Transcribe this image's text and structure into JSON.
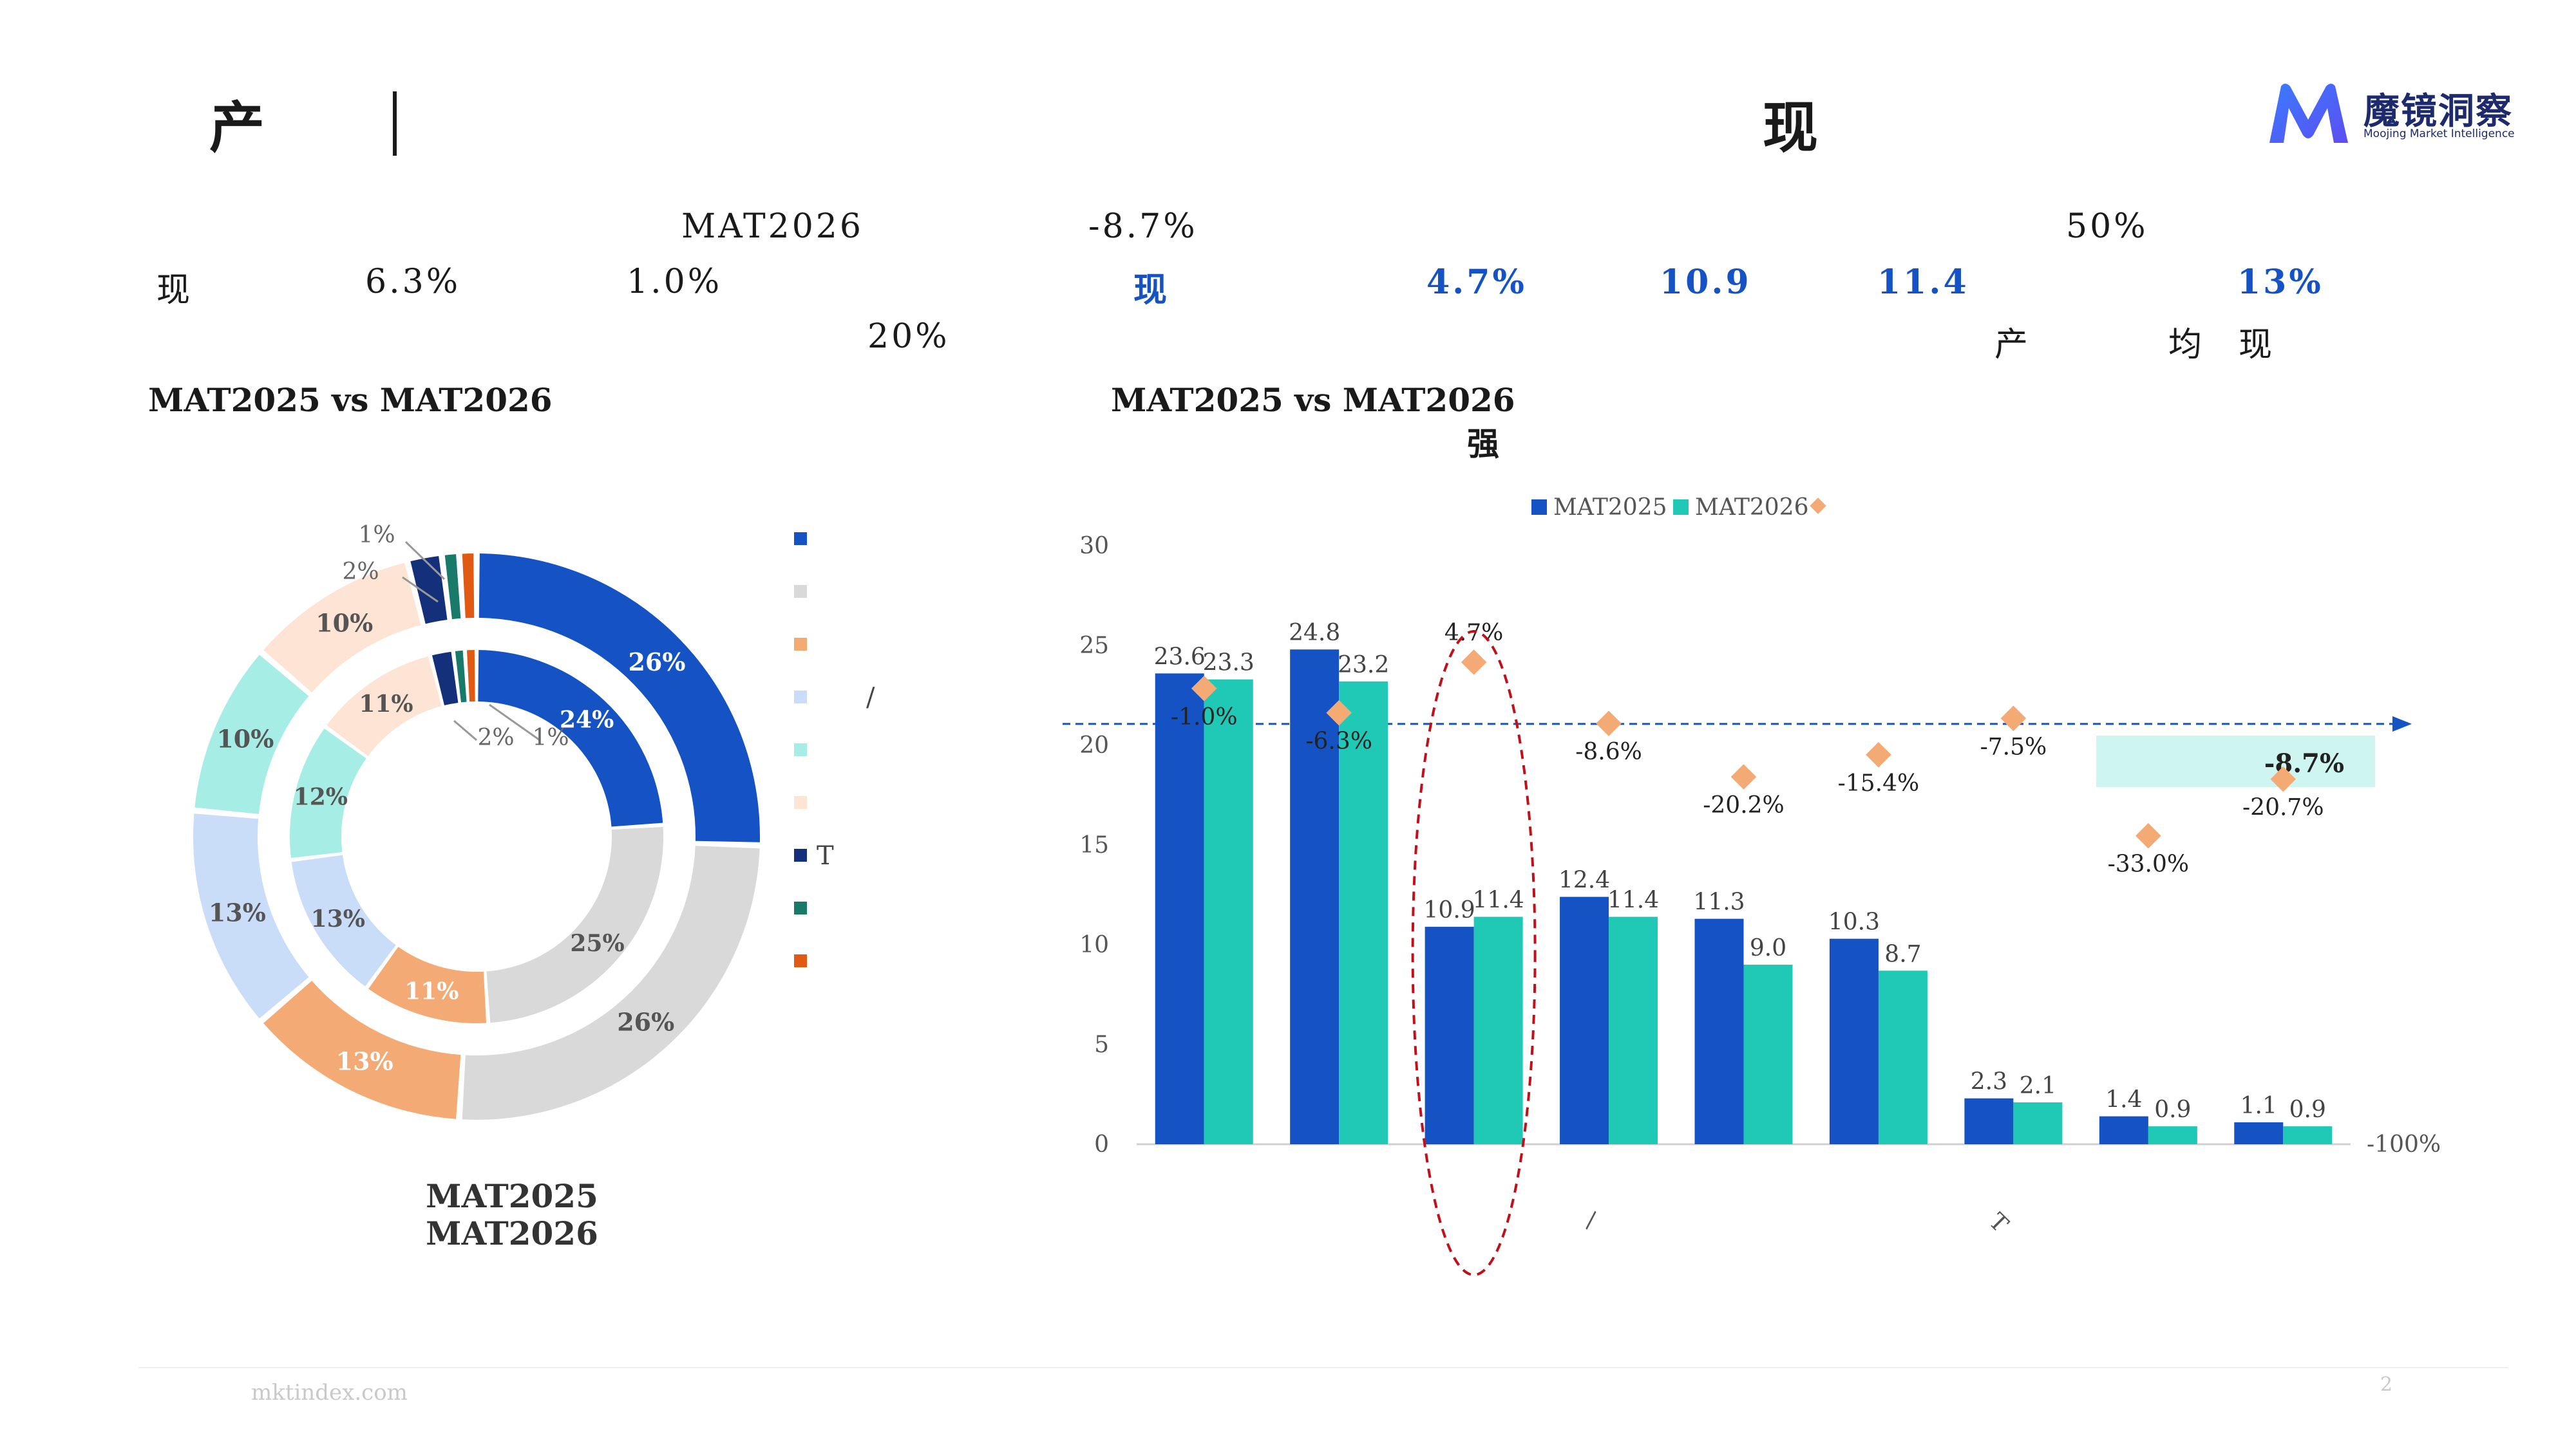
{
  "header": {
    "title_left": "产",
    "title_right": "现",
    "logo": {
      "name": "魔镜洞察",
      "tagline": "Moojing Market Intelligence"
    }
  },
  "summary": {
    "line1": {
      "mat": "MAT2026",
      "change": "-8.7%",
      "share": "50%"
    },
    "line2": {
      "lead": "现",
      "a": "6.3%",
      "b": "1.0%",
      "lead_blue": "现",
      "c": "4.7%",
      "d": "10.9",
      "e": "11.4",
      "f": "13%"
    },
    "line3": {
      "a": "20%",
      "tail1": "产",
      "tail2": "均",
      "tail3": "现"
    }
  },
  "left_panel": {
    "title": "MAT2025 vs MAT2026",
    "legend_label_t": "T",
    "legend_label_slash": "/"
  },
  "right_panel": {
    "title": "MAT2025 vs MAT2026",
    "subtitle": "强"
  },
  "footer": {
    "site": "mktindex.com",
    "page": "2"
  },
  "colors": {
    "blue": "#1553c4",
    "teal": "#20c9b5",
    "orange": "#f3aa74",
    "gray": "#d9d9d9",
    "lightblue": "#c9dcf8",
    "mint": "#a6ede5",
    "peach": "#fde4d4",
    "navy": "#14307a",
    "green": "#1a7a6a",
    "darkorange": "#e05a14"
  },
  "chart_data": [
    {
      "type": "pie",
      "subtype": "double-donut",
      "center_labels": [
        "MAT2025",
        "MAT2026"
      ],
      "legend_markers": [
        "blue",
        "gray",
        "orange",
        "lightblue",
        "mint",
        "peach",
        "navy",
        "green",
        "darkorange"
      ],
      "legend_labels": [
        "",
        "",
        "",
        "/",
        "",
        "",
        "T",
        "",
        ""
      ],
      "inner": {
        "name": "MAT2025",
        "values": [
          24,
          25,
          11,
          13,
          12,
          11,
          2,
          1,
          1
        ]
      },
      "outer": {
        "name": "MAT2026",
        "values": [
          26,
          26,
          13,
          13,
          10,
          10,
          2,
          1,
          1
        ]
      },
      "inner_labels": [
        "24%",
        "25%",
        "11%",
        "13%",
        "12%",
        "11%",
        "2%",
        "1%",
        "1%"
      ],
      "outer_labels": [
        "26%",
        "26%",
        "13%",
        "13%",
        "10%",
        "10%",
        "2%",
        "1%",
        "1%"
      ]
    },
    {
      "type": "bar",
      "legend": [
        "MAT2025",
        "MAT2026"
      ],
      "categories": [
        "",
        "",
        "",
        "",
        "",
        "",
        "",
        "",
        ""
      ],
      "x_labels_visible": [
        "",
        "",
        "",
        "\\",
        "",
        "",
        "T",
        "",
        ""
      ],
      "series": [
        {
          "name": "MAT2025",
          "values": [
            23.6,
            24.8,
            10.9,
            12.4,
            11.3,
            10.3,
            2.3,
            1.4,
            1.1
          ]
        },
        {
          "name": "MAT2026",
          "values": [
            23.3,
            23.2,
            11.4,
            11.4,
            9.0,
            8.7,
            2.1,
            0.9,
            0.9
          ]
        }
      ],
      "growth": {
        "values": [
          -1.0,
          -6.3,
          4.7,
          -8.6,
          -20.2,
          -15.4,
          -7.5,
          -33.0,
          -20.7
        ],
        "labels": [
          "-1.0%",
          "-6.3%",
          "4.7%",
          "-8.6%",
          "-20.2%",
          "-15.4%",
          "-7.5%",
          "-33.0%",
          "-20.7%"
        ]
      },
      "average_growth": {
        "value": -8.7,
        "label": "-8.7%"
      },
      "ylim": [
        0,
        30
      ],
      "yticks": [
        0,
        5,
        10,
        15,
        20,
        25,
        30
      ],
      "y2_tick_label": "-100%",
      "highlight_category_index": 2
    }
  ]
}
